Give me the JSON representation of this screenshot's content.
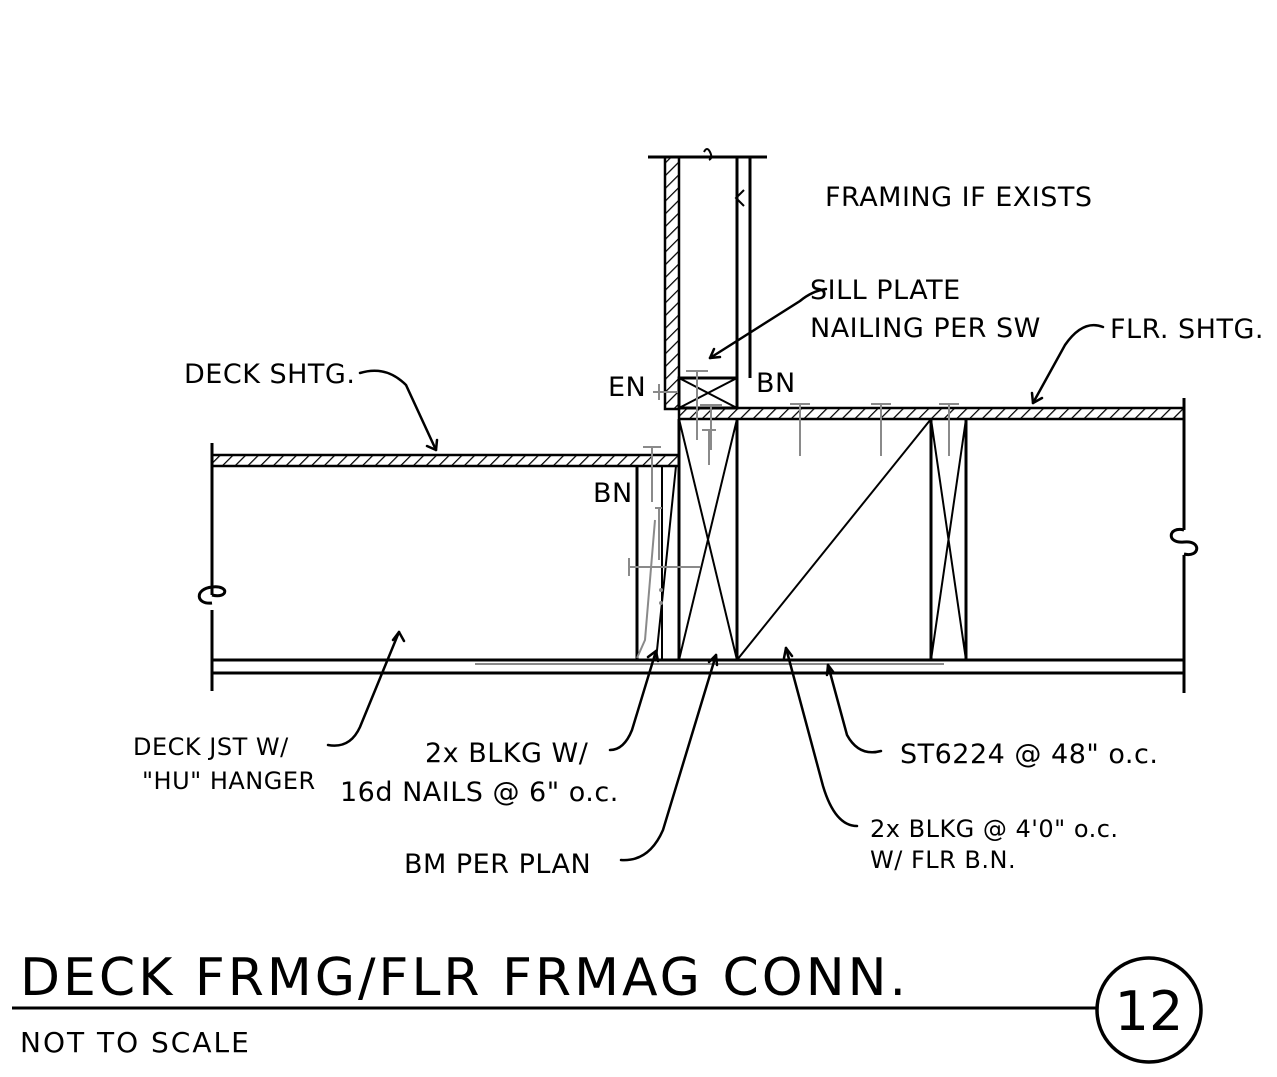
{
  "labels": {
    "framing_if_exists": "FRAMING IF EXISTS",
    "sill_plate_line1": "SILL PLATE",
    "sill_plate_line2": "NAILING PER SW",
    "flr_shtg": "FLR. SHTG.",
    "deck_shtg": "DECK SHTG.",
    "en": "EN",
    "bn_upper": "BN",
    "bn_lower": "BN",
    "deck_jst_line1": "DECK JST W/",
    "deck_jst_line2": "\"HU\" HANGER",
    "blkg_line1": "2x BLKG W/",
    "blkg_line2": "16d NAILS @ 6\" o.c.",
    "st6224": "ST6224 @ 48\" o.c.",
    "blkg_48_line1": "2x BLKG @ 4'0\" o.c.",
    "blkg_48_line2": "W/ FLR B.N.",
    "bm_per_plan": "BM PER PLAN"
  },
  "title_block": {
    "title": "DECK FRMG/FLR FRMAG CONN.",
    "subtitle": "NOT TO SCALE",
    "detail_number": "12"
  }
}
